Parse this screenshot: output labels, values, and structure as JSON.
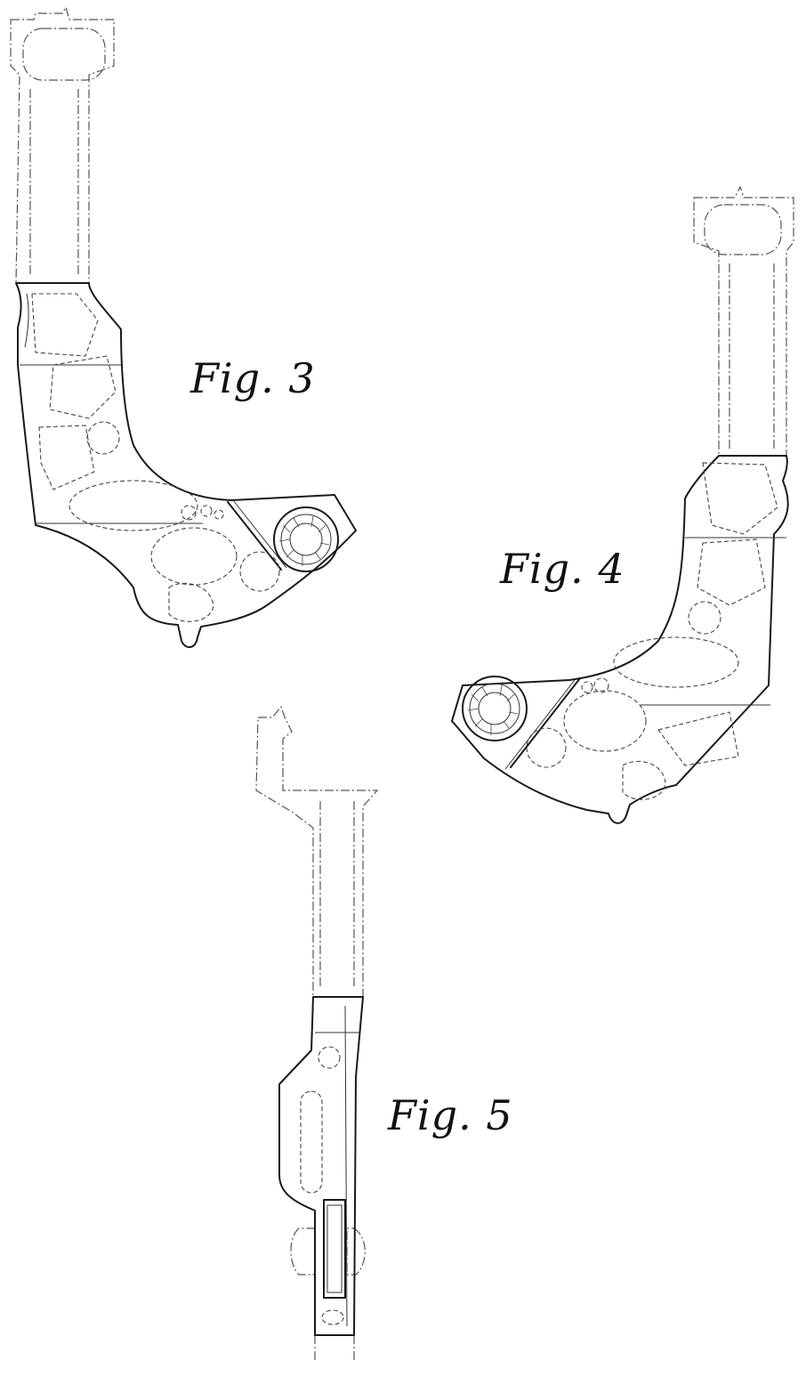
{
  "figures": [
    {
      "id": "fig3",
      "label": "Fig. 3"
    },
    {
      "id": "fig4",
      "label": "Fig. 4"
    },
    {
      "id": "fig5",
      "label": "Fig. 5"
    }
  ],
  "colors": {
    "line": "#1a1a1a",
    "background": "#ffffff"
  }
}
